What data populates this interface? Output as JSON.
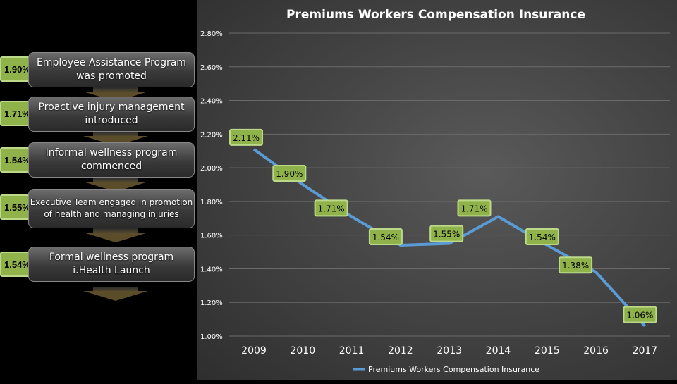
{
  "steps": [
    {
      "value": "1.90%",
      "label": "Employee Assistance Program was promoted"
    },
    {
      "value": "1.71%",
      "label": "Proactive injury management introduced"
    },
    {
      "value": "1.54%",
      "label": "Informal wellness program commenced"
    },
    {
      "value": "1.55%",
      "label": "Executive Team engaged in promotion of health and managing injuries"
    },
    {
      "value": "1.54%",
      "label": "Formal wellness program i.Health Launch"
    }
  ],
  "chart_data": {
    "type": "line",
    "title": "Premiums Workers Compensation Insurance",
    "categories": [
      "2009",
      "2010",
      "2011",
      "2012",
      "2013",
      "2014",
      "2015",
      "2016",
      "2017"
    ],
    "series": [
      {
        "name": "Premiums Workers Compensation Insurance",
        "values": [
          2.11,
          1.9,
          1.71,
          1.54,
          1.55,
          1.71,
          1.54,
          1.38,
          1.06
        ],
        "labels": [
          "2.11%",
          "1.90%",
          "1.71%",
          "1.54%",
          "1.55%",
          "1.71%",
          "1.54%",
          "1.38%",
          "1.06%"
        ]
      }
    ],
    "y_ticks": [
      "1.00%",
      "1.20%",
      "1.40%",
      "1.60%",
      "1.80%",
      "2.00%",
      "2.20%",
      "2.40%",
      "2.60%",
      "2.80%"
    ],
    "ylim": [
      1.0,
      2.8
    ],
    "grid": true,
    "legend": "bottom",
    "colors": {
      "line": "#5b9bd5",
      "label_bg": "#8fb24b",
      "label_border": "#bcd98a"
    }
  }
}
